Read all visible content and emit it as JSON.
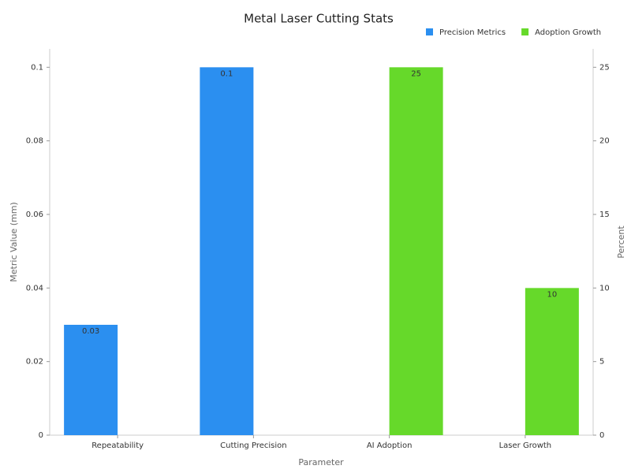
{
  "chart_data": {
    "type": "bar",
    "title": "Metal Laser Cutting Stats",
    "x_label": "Parameter",
    "y_label": "Metric Value (mm)",
    "y2_label": "Percent",
    "categories": [
      "Repeatability",
      "Cutting Precision",
      "AI Adoption",
      "Laser Growth"
    ],
    "series": [
      {
        "name": "Precision Metrics",
        "color": "#2b8ff0",
        "values": [
          0.03,
          0.1,
          null,
          null
        ]
      },
      {
        "name": "Adoption Growth",
        "color": "#66d92a",
        "axis": "y2",
        "values": [
          null,
          null,
          25,
          10
        ]
      }
    ],
    "ylim": [
      0,
      0.105
    ],
    "yticks": [
      0,
      0.02,
      0.04,
      0.06,
      0.08,
      0.1
    ],
    "y2lim": [
      0,
      26.25
    ],
    "y2ticks": [
      0,
      5,
      10,
      15,
      20,
      25
    ],
    "grid": false,
    "legend": "top-right"
  }
}
